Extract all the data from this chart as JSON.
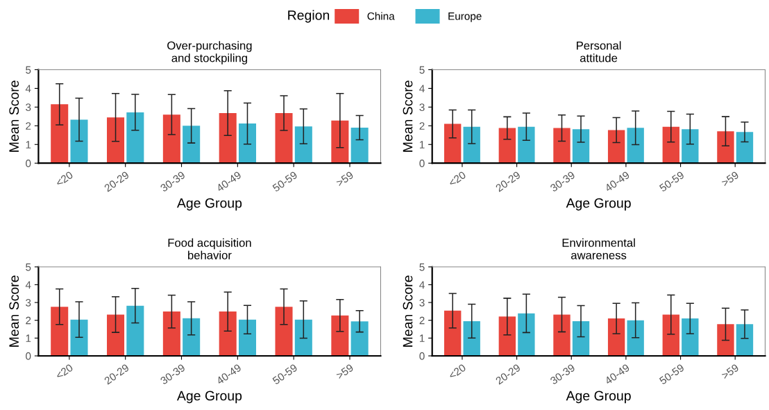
{
  "chart_data": [
    {
      "type": "bar",
      "title": "Over-purchasing\nand stockpiling",
      "xlabel": "Age Group",
      "ylabel": "Mean Score",
      "legend_title": "Region",
      "legend": "top",
      "categories": [
        "<20",
        "20-29",
        "30-39",
        "40-49",
        "50-59",
        ">59"
      ],
      "ylim": [
        0,
        5
      ],
      "yticks": [
        0,
        1,
        2,
        3,
        4,
        5
      ],
      "series": [
        {
          "name": "China",
          "color": "#e8453c",
          "values": [
            3.15,
            2.45,
            2.6,
            2.68,
            2.68,
            2.28
          ],
          "errors": [
            1.1,
            1.28,
            1.07,
            1.2,
            0.93,
            1.45
          ]
        },
        {
          "name": "Europe",
          "color": "#3bb5cf",
          "values": [
            2.33,
            2.72,
            2.0,
            2.12,
            1.97,
            1.9
          ],
          "errors": [
            1.15,
            0.96,
            0.92,
            1.1,
            0.93,
            0.65
          ]
        }
      ]
    },
    {
      "type": "bar",
      "title": "Personal\nattitude",
      "xlabel": "Age Group",
      "ylabel": "Mean Score",
      "categories": [
        "<20",
        "20-29",
        "30-39",
        "40-49",
        "50-59",
        ">59"
      ],
      "ylim": [
        0,
        5
      ],
      "yticks": [
        0,
        1,
        2,
        3,
        4,
        5
      ],
      "series": [
        {
          "color": "#e8453c",
          "values": [
            2.1,
            1.88,
            1.88,
            1.77,
            1.95,
            1.71
          ],
          "errors": [
            0.75,
            0.6,
            0.7,
            0.67,
            0.82,
            0.78
          ]
        },
        {
          "color": "#3bb5cf",
          "values": [
            1.95,
            1.95,
            1.82,
            1.89,
            1.82,
            1.67
          ],
          "errors": [
            0.9,
            0.73,
            0.7,
            0.9,
            0.8,
            0.53
          ]
        }
      ]
    },
    {
      "type": "bar",
      "title": "Food acquisition\nbehavior",
      "xlabel": "Age Group",
      "ylabel": "Mean Score",
      "categories": [
        "<20",
        "20-29",
        "30-39",
        "40-49",
        "50-59",
        ">59"
      ],
      "ylim": [
        0,
        5
      ],
      "yticks": [
        0,
        1,
        2,
        3,
        4,
        5
      ],
      "series": [
        {
          "color": "#e8453c",
          "values": [
            2.76,
            2.32,
            2.49,
            2.49,
            2.76,
            2.27
          ],
          "errors": [
            1.0,
            1.0,
            0.92,
            1.1,
            1.0,
            0.9
          ]
        },
        {
          "color": "#3bb5cf",
          "values": [
            2.04,
            2.82,
            2.11,
            2.04,
            2.04,
            1.94
          ],
          "errors": [
            1.0,
            0.97,
            0.93,
            0.8,
            1.05,
            0.6
          ]
        }
      ]
    },
    {
      "type": "bar",
      "title": "Environmental\nawareness",
      "xlabel": "Age Group",
      "ylabel": "Mean Score",
      "categories": [
        "<20",
        "20-29",
        "30-39",
        "40-49",
        "50-59",
        ">59"
      ],
      "ylim": [
        0,
        5
      ],
      "yticks": [
        0,
        1,
        2,
        3,
        4,
        5
      ],
      "series": [
        {
          "color": "#e8453c",
          "values": [
            2.54,
            2.21,
            2.32,
            2.1,
            2.32,
            1.78
          ],
          "errors": [
            0.97,
            1.03,
            0.97,
            0.85,
            1.1,
            0.9
          ]
        },
        {
          "color": "#3bb5cf",
          "values": [
            1.95,
            2.39,
            1.95,
            2.0,
            2.1,
            1.78
          ],
          "errors": [
            0.95,
            1.08,
            0.88,
            0.98,
            0.85,
            0.8
          ]
        }
      ]
    }
  ]
}
